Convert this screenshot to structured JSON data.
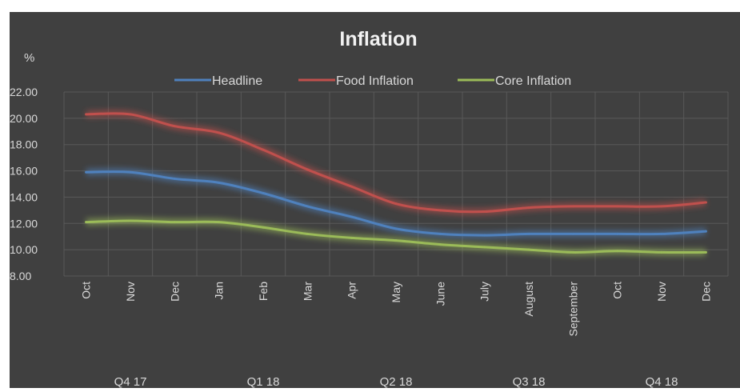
{
  "chart_data": {
    "type": "line",
    "title": "Inflation",
    "ylabel": "%",
    "xlabel": "",
    "ylim": [
      8,
      22
    ],
    "yticks": [
      "22.00",
      "20.00",
      "18.00",
      "16.00",
      "14.00",
      "12.00",
      "10.00",
      "8.00"
    ],
    "categories": [
      "Oct",
      "Nov",
      "Dec",
      "Jan",
      "Feb",
      "Mar",
      "Apr",
      "May",
      "June",
      "July",
      "August",
      "September",
      "Oct",
      "Nov",
      "Dec"
    ],
    "groups": [
      {
        "label": "Q4 17",
        "start": 0,
        "end": 2
      },
      {
        "label": "Q1 18",
        "start": 3,
        "end": 5
      },
      {
        "label": "Q2 18",
        "start": 6,
        "end": 8
      },
      {
        "label": "Q3 18",
        "start": 9,
        "end": 11
      },
      {
        "label": "Q4 18",
        "start": 12,
        "end": 14
      }
    ],
    "series": [
      {
        "name": "Headline",
        "color": "#4f81bd",
        "values": [
          15.9,
          15.9,
          15.4,
          15.1,
          14.3,
          13.3,
          12.5,
          11.6,
          11.2,
          11.1,
          11.2,
          11.2,
          11.2,
          11.2,
          11.4
        ]
      },
      {
        "name": "Food Inflation",
        "color": "#c0504d",
        "values": [
          20.3,
          20.3,
          19.4,
          18.9,
          17.6,
          16.1,
          14.8,
          13.5,
          13.0,
          12.9,
          13.2,
          13.3,
          13.3,
          13.3,
          13.6
        ]
      },
      {
        "name": "Core Inflation",
        "color": "#9bbb59",
        "values": [
          12.1,
          12.2,
          12.1,
          12.1,
          11.7,
          11.2,
          10.9,
          10.7,
          10.4,
          10.2,
          10.0,
          9.8,
          9.9,
          9.8,
          9.8
        ]
      }
    ],
    "grid": true,
    "legend": "top"
  },
  "colors": {
    "background": "#404040",
    "grid": "#595959",
    "text": "#d9d9d9",
    "title": "#f2f2f2"
  }
}
